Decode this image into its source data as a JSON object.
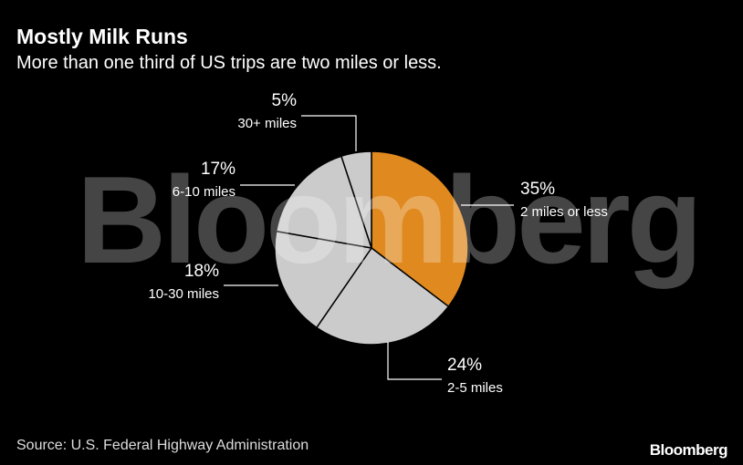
{
  "chart_data": {
    "type": "pie",
    "title": "Mostly Milk Runs",
    "subtitle": "More than one third of US trips are two miles or less.",
    "categories": [
      "2 miles or less",
      "2-5 miles",
      "10-30 miles",
      "6-10 miles",
      "30+ miles"
    ],
    "values": [
      35,
      24,
      18,
      17,
      5
    ],
    "value_labels": [
      "35%",
      "24%",
      "18%",
      "17%",
      "5%"
    ],
    "colors": [
      "#e0891f",
      "#cbcbcb",
      "#cbcbcb",
      "#cbcbcb",
      "#cbcbcb"
    ],
    "source": "Source: U.S. Federal Highway Administration",
    "watermark": "Bloomberg",
    "logo": "Bloomberg"
  }
}
